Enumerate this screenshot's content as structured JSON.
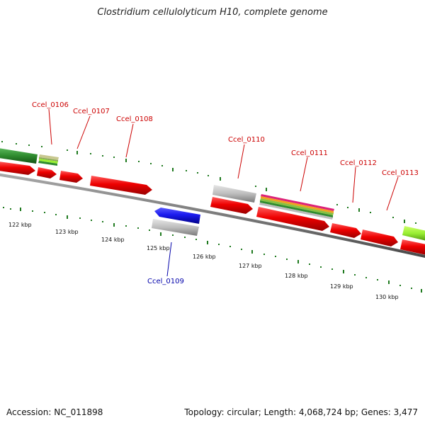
{
  "title": "Clostridium cellulolyticum H10, complete genome",
  "footer": {
    "accession": "Accession: NC_011898",
    "summary": "Topology: circular; Length: 4,068,724 bp; Genes: 3,477"
  },
  "colors": {
    "backbone": "#7a7a7a",
    "tick": "#1f7a1f",
    "gene_label": "#cc0000",
    "gene_label_reverse": "#0000aa",
    "red_cds": "#ee0000",
    "blue_cds": "#1a1aee",
    "grey_feature": "#b8b8b8",
    "dark_green_feature": "#2e8b2e",
    "light_green_feature": "#99ee33"
  },
  "scale_ticks": [
    "122 kbp",
    "123 kbp",
    "124 kbp",
    "125 kbp",
    "126 kbp",
    "127 kbp",
    "128 kbp",
    "129 kbp",
    "130 kbp"
  ],
  "gene_labels": [
    {
      "name": "Ccel_0106",
      "strand": "+"
    },
    {
      "name": "Ccel_0107",
      "strand": "+"
    },
    {
      "name": "Ccel_0108",
      "strand": "+"
    },
    {
      "name": "Ccel_0109",
      "strand": "-"
    },
    {
      "name": "Ccel_0110",
      "strand": "+"
    },
    {
      "name": "Ccel_0111",
      "strand": "+"
    },
    {
      "name": "Ccel_0112",
      "strand": "+"
    },
    {
      "name": "Ccel_0113",
      "strand": "+"
    }
  ]
}
